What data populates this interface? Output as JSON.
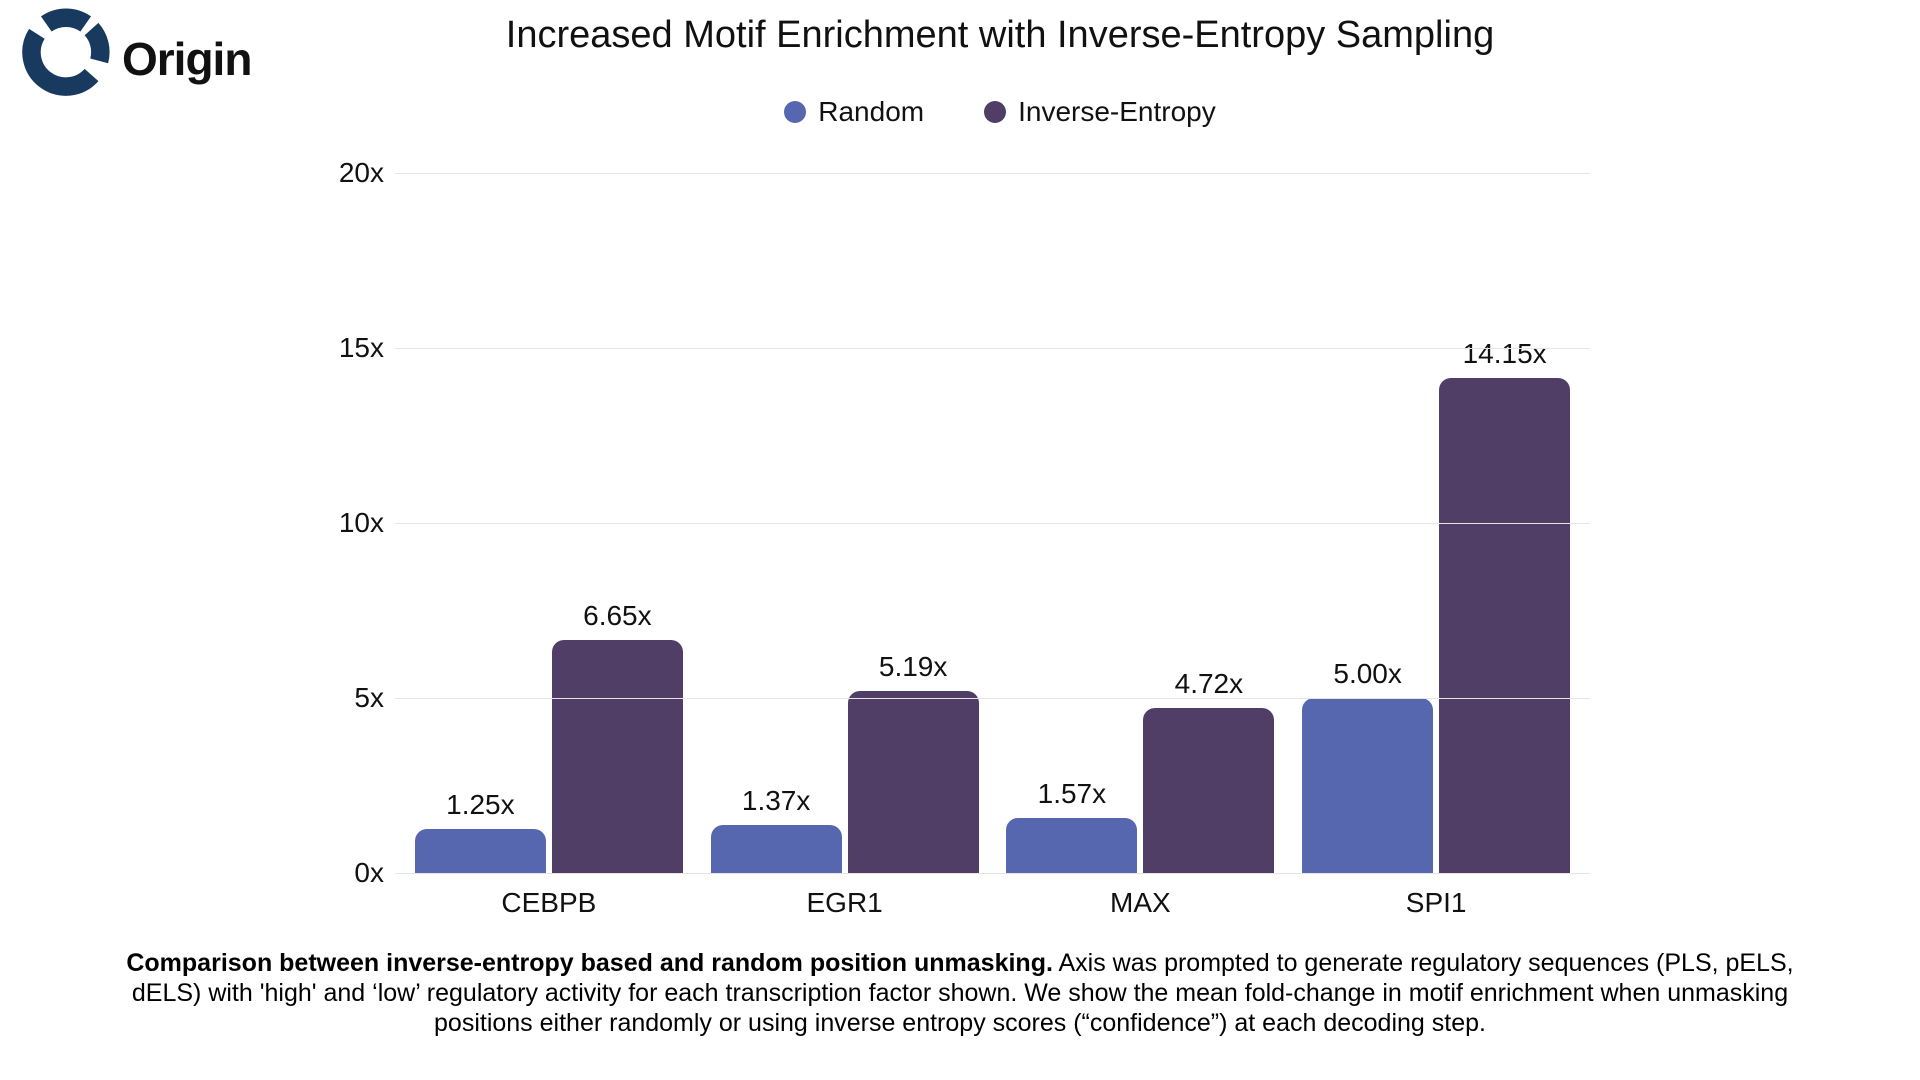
{
  "logo": {
    "text": "Origin",
    "color": "#173a5e"
  },
  "title": "Increased Motif Enrichment with Inverse-Entropy Sampling",
  "legend": {
    "items": [
      {
        "label": "Random",
        "color": "#5767af"
      },
      {
        "label": "Inverse-Entropy",
        "color": "#503e66"
      }
    ]
  },
  "chart_data": {
    "type": "bar",
    "categories": [
      "CEBPB",
      "EGR1",
      "MAX",
      "SPI1"
    ],
    "series": [
      {
        "name": "Random",
        "color": "#5767af",
        "values": [
          1.25,
          1.37,
          1.57,
          5.0
        ],
        "labels": [
          "1.25x",
          "1.37x",
          "1.57x",
          "5.00x"
        ]
      },
      {
        "name": "Inverse-Entropy",
        "color": "#503e66",
        "values": [
          6.65,
          5.19,
          4.72,
          14.15
        ],
        "labels": [
          "6.65x",
          "5.19x",
          "4.72x",
          "14.15x"
        ]
      }
    ],
    "ylim": [
      0,
      20
    ],
    "yticks": [
      {
        "value": 20,
        "label": "20x"
      },
      {
        "value": 15,
        "label": "15x"
      },
      {
        "value": 10,
        "label": "10x"
      },
      {
        "value": 5,
        "label": "5x"
      },
      {
        "value": 0,
        "label": "0x"
      }
    ],
    "grid": true,
    "gridline_color": "#e5e5e5",
    "legend_position": "top",
    "xlabel": "",
    "ylabel": ""
  },
  "caption": {
    "bold": "Comparison between inverse-entropy based and random position unmasking.",
    "rest": " Axis was prompted to generate regulatory sequences (PLS, pELS, dELS) with 'high' and ‘low’ regulatory activity for each transcription factor shown. We show the mean fold-change in motif enrichment when unmasking positions either randomly or using inverse entropy scores (“confidence”) at each decoding step."
  }
}
